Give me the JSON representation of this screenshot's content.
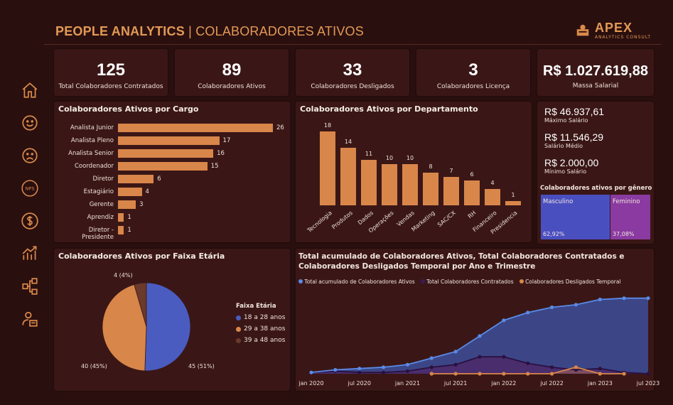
{
  "header": {
    "title_main": "PEOPLE ANALYTICS",
    "title_sep": "|",
    "title_sub": "COLABORADORES ATIVOS",
    "logo_brand": "APEX",
    "logo_tag": "ANALYTICS CONSULT"
  },
  "sidebar": {
    "items": [
      {
        "name": "home-icon"
      },
      {
        "name": "smile-icon"
      },
      {
        "name": "sad-icon"
      },
      {
        "name": "nps-icon"
      },
      {
        "name": "dollar-icon"
      },
      {
        "name": "chart-up-icon"
      },
      {
        "name": "org-chart-icon"
      },
      {
        "name": "user-card-icon"
      }
    ],
    "nps_label": "NPS"
  },
  "kpis": [
    {
      "value": "125",
      "label": "Total Colaboradores Contratados"
    },
    {
      "value": "89",
      "label": "Colaboradores Ativos"
    },
    {
      "value": "33",
      "label": "Colaboradores Desligados"
    },
    {
      "value": "3",
      "label": "Colaboradores Licença"
    },
    {
      "value": "R$ 1.027.619,88",
      "label": "Massa Salarial"
    }
  ],
  "salaries": {
    "max_value": "R$ 46.937,61",
    "max_label": "Máximo Salário",
    "avg_value": "R$ 11.546,29",
    "avg_label": "Salário Médio",
    "min_value": "R$ 2.000,00",
    "min_label": "Mínimo Salário"
  },
  "gender": {
    "title": "Colaboradores ativos por gênero",
    "male_label": "Masculino",
    "male_pct": "62,92%",
    "female_label": "Feminino",
    "female_pct": "37,08%",
    "colors": {
      "male": "#4a4fc0",
      "female": "#8a3aa0"
    }
  },
  "cargo": {
    "title": "Colaboradores Ativos por Cargo",
    "chart_data": {
      "type": "bar",
      "categories": [
        "Analista Junior",
        "Analista Pleno",
        "Analista Senior",
        "Coordenador",
        "Diretor",
        "Estagiário",
        "Gerente",
        "Aprendiz",
        "Diretor - Presidente"
      ],
      "values": [
        26,
        17,
        16,
        15,
        6,
        4,
        3,
        1,
        1
      ]
    }
  },
  "departamento": {
    "title": "Colaboradores Ativos por Departamento",
    "chart_data": {
      "type": "bar",
      "categories": [
        "Tecnologia",
        "Produtos",
        "Dados",
        "Operações",
        "Vendas",
        "Marketing",
        "SAC/CX",
        "RH",
        "Financeiro",
        "Presidencia"
      ],
      "values": [
        18,
        14,
        11,
        10,
        10,
        8,
        7,
        6,
        4,
        1
      ]
    }
  },
  "faixa": {
    "title": "Colaboradores Ativos por Faixa Etária",
    "legend_title": "Faixa Etária",
    "chart_data": {
      "type": "pie",
      "categories": [
        "18 a 28 anos",
        "29 a 38 anos",
        "39 a 48 anos"
      ],
      "values": [
        45,
        40,
        4
      ],
      "labels": [
        "45 (51%)",
        "40 (45%)",
        "4 (4%)"
      ],
      "colors": [
        "#4a5cc0",
        "#d9864a",
        "#6a3a2a"
      ]
    }
  },
  "timeline": {
    "title": "Total acumulado de Colaboradores Ativos, Total Colaboradores Contratados e Colaboradores Desligados Temporal por Ano e Trimestre",
    "chart_data": {
      "type": "area",
      "x": [
        "jan 2020",
        "abr 2020",
        "jul 2020",
        "out 2020",
        "jan 2021",
        "abr 2021",
        "jul 2021",
        "out 2021",
        "jan 2022",
        "abr 2022",
        "jul 2022",
        "out 2022",
        "jan 2023",
        "abr 2023",
        "jul 2023"
      ],
      "tick_labels": [
        "jan 2020",
        "jul 2020",
        "jan 2021",
        "jul 2021",
        "jan 2022",
        "jul 2022",
        "jan 2023",
        "jul 2023"
      ],
      "series": [
        {
          "name": "Total acumulado de Colaboradores Ativos",
          "color": "#5a8ae8",
          "values": [
            1,
            3,
            4,
            5,
            7,
            12,
            17,
            29,
            41,
            47,
            51,
            53,
            57,
            58,
            58
          ]
        },
        {
          "name": "Total Colaboradores Contratados",
          "color": "#3a1a5a",
          "values": [
            1,
            2,
            1,
            1,
            2,
            5,
            7,
            13,
            13,
            8,
            5,
            3,
            4,
            1,
            0
          ]
        },
        {
          "name": "Colaboradores Desligados Temporal",
          "color": "#d9864a",
          "values": [
            null,
            null,
            null,
            null,
            null,
            0,
            0,
            0,
            0,
            0,
            0,
            5,
            0,
            0,
            null
          ]
        }
      ],
      "ylim": [
        0,
        60
      ]
    }
  }
}
